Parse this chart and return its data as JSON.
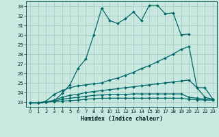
{
  "title": "",
  "xlabel": "Humidex (Indice chaleur)",
  "background_color": "#c8e8e0",
  "grid_color": "#a0c8c0",
  "line_color": "#006868",
  "xlim": [
    -0.5,
    23.5
  ],
  "ylim": [
    22.5,
    33.5
  ],
  "xticks": [
    0,
    1,
    2,
    3,
    4,
    5,
    6,
    7,
    8,
    9,
    10,
    11,
    12,
    13,
    14,
    15,
    16,
    17,
    18,
    19,
    20,
    21,
    22,
    23
  ],
  "yticks": [
    23,
    24,
    25,
    26,
    27,
    28,
    29,
    30,
    31,
    32,
    33
  ],
  "series": [
    {
      "x": [
        0,
        1,
        2,
        3,
        4,
        5,
        6,
        7,
        8,
        9,
        10,
        11,
        12,
        13,
        14,
        15,
        16,
        17,
        18,
        19,
        20
      ],
      "y": [
        22.9,
        22.9,
        23.0,
        23.1,
        23.9,
        24.8,
        26.5,
        27.5,
        30.0,
        32.8,
        31.5,
        31.2,
        31.7,
        32.4,
        31.5,
        33.1,
        33.1,
        32.2,
        32.3,
        30.0,
        30.1
      ]
    },
    {
      "x": [
        0,
        1,
        2,
        3,
        4,
        5,
        6,
        7,
        8,
        9,
        10,
        11,
        12,
        13,
        14,
        15,
        16,
        17,
        18,
        19,
        20,
        21,
        22,
        23
      ],
      "y": [
        22.9,
        22.9,
        23.1,
        23.8,
        24.2,
        24.5,
        24.7,
        24.8,
        24.9,
        25.0,
        25.3,
        25.5,
        25.8,
        26.1,
        26.5,
        26.8,
        27.2,
        27.6,
        28.0,
        28.5,
        28.8,
        24.5,
        24.5,
        23.3
      ]
    },
    {
      "x": [
        0,
        1,
        2,
        3,
        4,
        5,
        6,
        7,
        8,
        9,
        10,
        11,
        12,
        13,
        14,
        15,
        16,
        17,
        18,
        19,
        20,
        21,
        22,
        23
      ],
      "y": [
        22.9,
        22.9,
        23.0,
        23.2,
        23.5,
        23.7,
        23.8,
        24.0,
        24.1,
        24.2,
        24.3,
        24.4,
        24.5,
        24.6,
        24.7,
        24.8,
        24.9,
        25.0,
        25.1,
        25.2,
        25.3,
        24.5,
        23.5,
        23.3
      ]
    },
    {
      "x": [
        0,
        1,
        2,
        3,
        4,
        5,
        6,
        7,
        8,
        9,
        10,
        11,
        12,
        13,
        14,
        15,
        16,
        17,
        18,
        19,
        20,
        21,
        22,
        23
      ],
      "y": [
        22.9,
        22.9,
        23.0,
        23.1,
        23.3,
        23.4,
        23.5,
        23.6,
        23.7,
        23.75,
        23.8,
        23.8,
        23.8,
        23.85,
        23.85,
        23.85,
        23.85,
        23.85,
        23.85,
        23.85,
        23.5,
        23.4,
        23.3,
        23.3
      ]
    },
    {
      "x": [
        0,
        1,
        2,
        3,
        4,
        5,
        6,
        7,
        8,
        9,
        10,
        11,
        12,
        13,
        14,
        15,
        16,
        17,
        18,
        19,
        20,
        21,
        22,
        23
      ],
      "y": [
        22.9,
        22.9,
        23.0,
        23.05,
        23.1,
        23.15,
        23.2,
        23.3,
        23.35,
        23.4,
        23.4,
        23.4,
        23.4,
        23.4,
        23.4,
        23.4,
        23.4,
        23.4,
        23.4,
        23.4,
        23.3,
        23.25,
        23.2,
        23.2
      ]
    }
  ]
}
